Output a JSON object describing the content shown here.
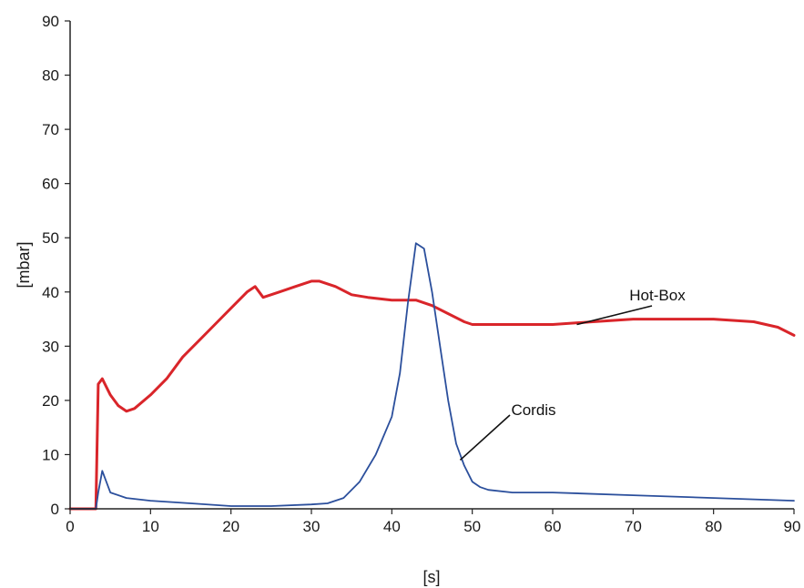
{
  "chart_data": {
    "type": "line",
    "xlabel": "[s]",
    "ylabel": "[mbar]",
    "xlim": [
      0,
      90
    ],
    "ylim": [
      0,
      90
    ],
    "xticks": [
      0,
      10,
      20,
      30,
      40,
      50,
      60,
      70,
      80,
      90
    ],
    "yticks": [
      0,
      10,
      20,
      30,
      40,
      50,
      60,
      70,
      80,
      90
    ],
    "grid": false,
    "legend": "none",
    "series": [
      {
        "name": "Hot-Box",
        "color": "#d9252a",
        "x": [
          0,
          3.2,
          3.5,
          4,
          5,
          6,
          7,
          8,
          10,
          12,
          14,
          16,
          18,
          20,
          22,
          23,
          24,
          26,
          28,
          30,
          31,
          33,
          35,
          37,
          40,
          43,
          45,
          47,
          49,
          50,
          55,
          60,
          65,
          70,
          75,
          80,
          85,
          88,
          90
        ],
        "y": [
          0,
          0,
          23,
          24,
          21,
          19,
          18,
          18.5,
          21,
          24,
          28,
          31,
          34,
          37,
          40,
          41,
          39,
          40,
          41,
          42,
          42,
          41,
          39.5,
          39,
          38.5,
          38.5,
          37.5,
          36,
          34.5,
          34,
          34,
          34,
          34.5,
          35,
          35,
          35,
          34.5,
          33.5,
          32
        ]
      },
      {
        "name": "Cordis",
        "color": "#2b4f9c",
        "x": [
          0,
          3.2,
          3.5,
          4,
          5,
          7,
          10,
          15,
          20,
          25,
          30,
          32,
          34,
          36,
          38,
          40,
          41,
          42,
          43,
          44,
          45,
          46,
          47,
          48,
          49,
          50,
          51,
          52,
          55,
          60,
          70,
          80,
          90
        ],
        "y": [
          0,
          0,
          3,
          7,
          3,
          2,
          1.5,
          1,
          0.5,
          0.5,
          0.8,
          1,
          2,
          5,
          10,
          17,
          25,
          38,
          49,
          48,
          40,
          30,
          20,
          12,
          8,
          5,
          4,
          3.5,
          3,
          3,
          2.5,
          2,
          1.5
        ]
      }
    ],
    "annotations": [
      {
        "text": "Hot-Box",
        "series": "Hot-Box",
        "arrow_to": [
          63,
          34
        ]
      },
      {
        "text": "Cordis",
        "series": "Cordis",
        "arrow_to": [
          48.5,
          9
        ]
      }
    ]
  }
}
